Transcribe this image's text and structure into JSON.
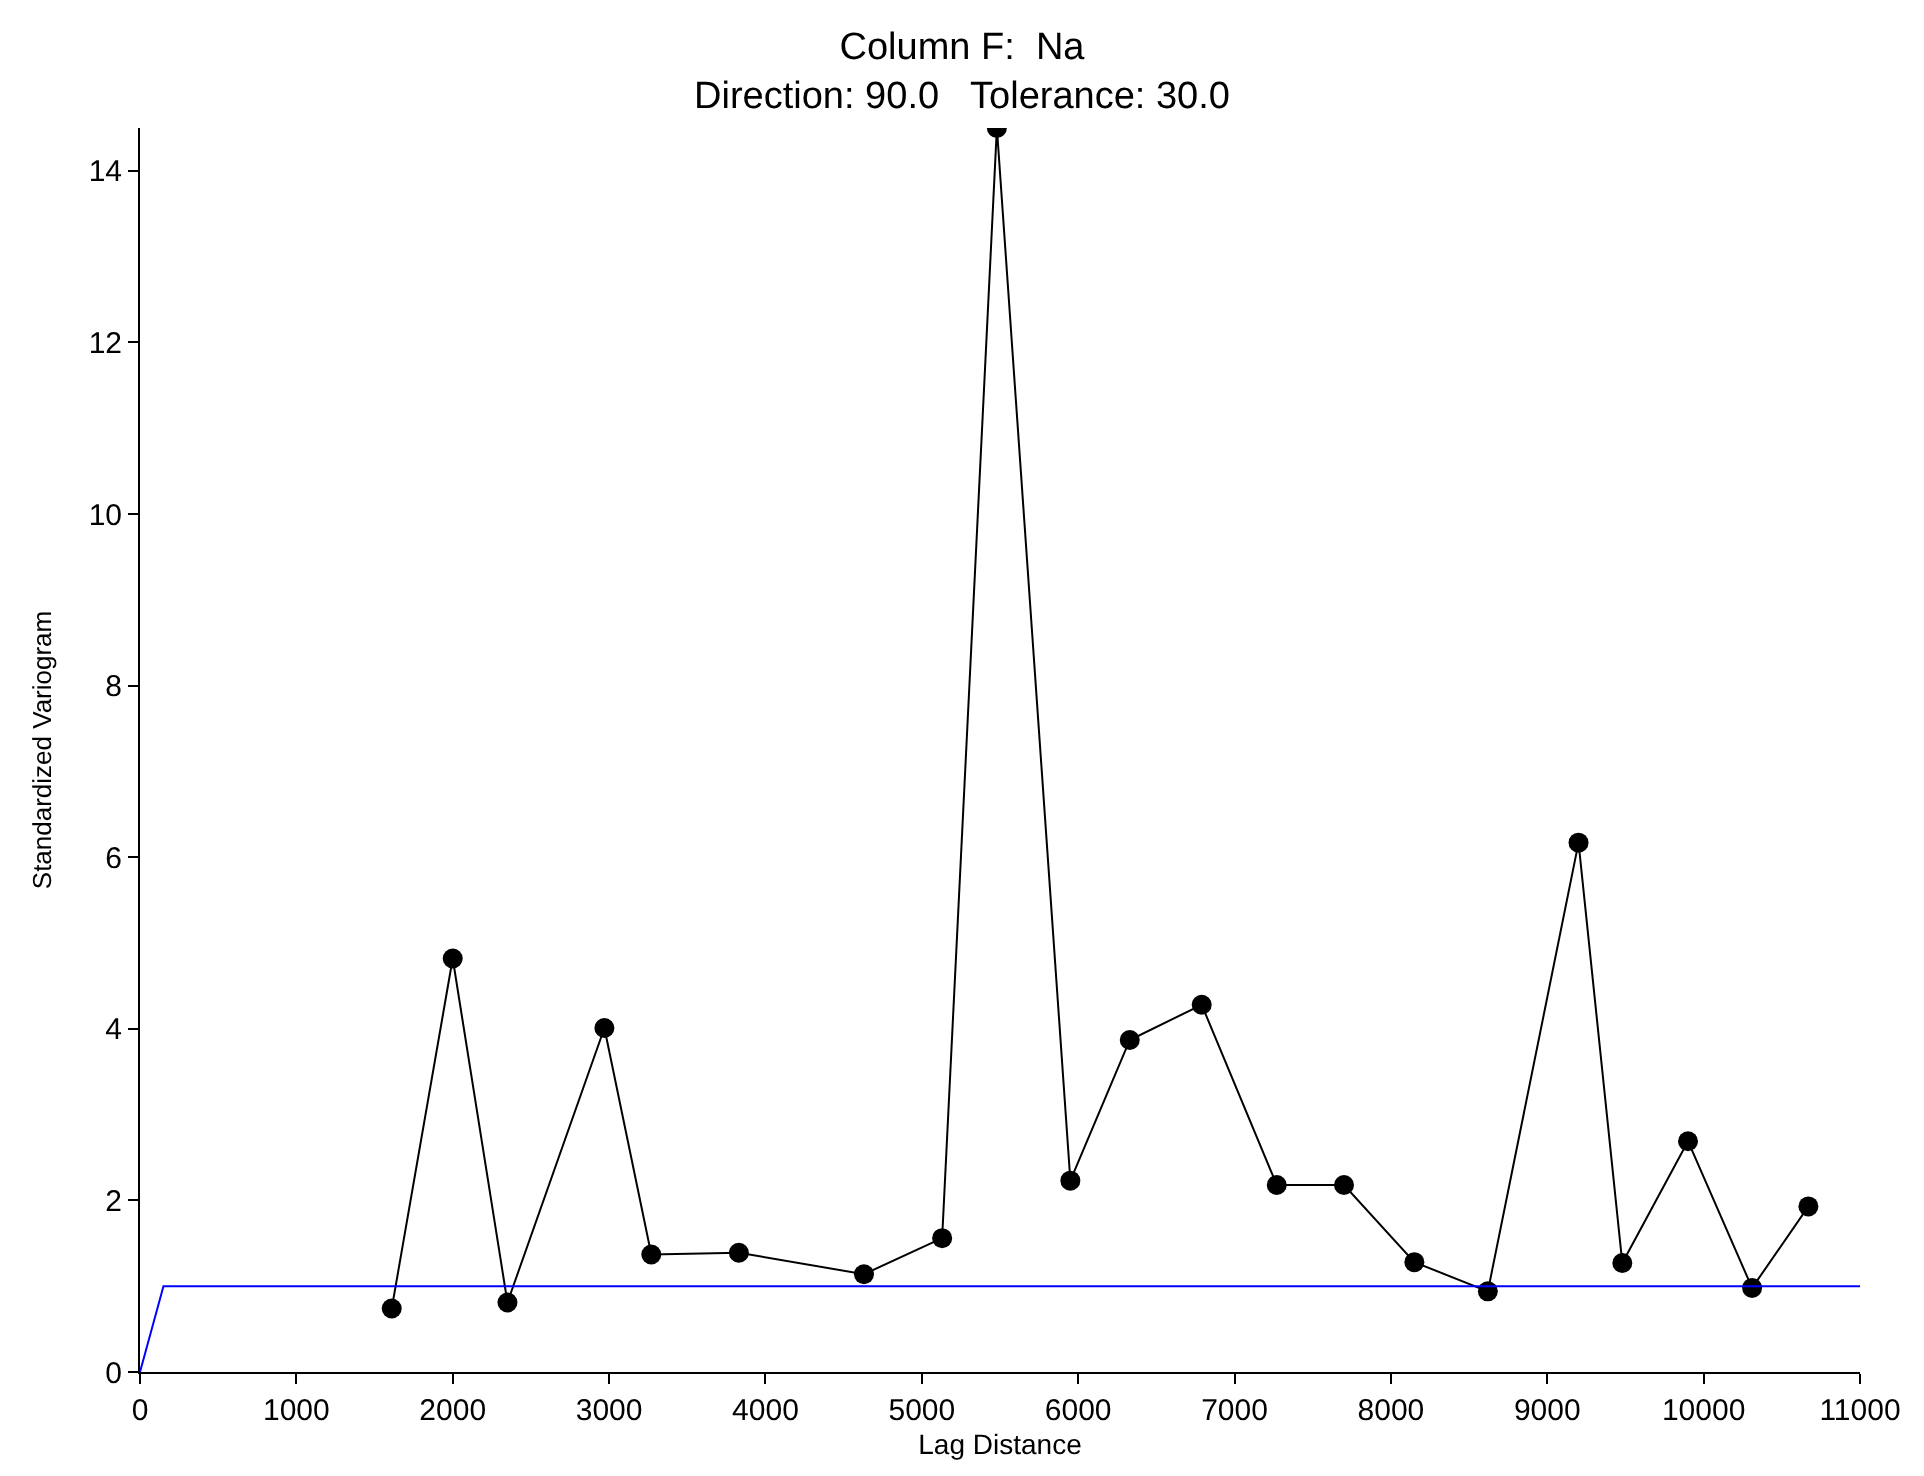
{
  "chart_data": {
    "type": "line",
    "title": "Column F:  Na",
    "subtitle": "Direction: 90.0   Tolerance: 30.0",
    "xlabel": "Lag Distance",
    "ylabel": "Standardized Variogram",
    "series": [
      {
        "color": "#000000",
        "marker": "circle",
        "x": [
          1610,
          2000,
          2350,
          2970,
          3270,
          3830,
          4630,
          5130,
          5480,
          5950,
          6330,
          6790,
          7270,
          7700,
          8150,
          8620,
          9200,
          9480,
          9900,
          10310,
          10670
        ],
        "values": [
          0.74,
          4.82,
          0.81,
          4.01,
          1.37,
          1.39,
          1.14,
          1.56,
          14.5,
          2.23,
          3.87,
          4.28,
          2.18,
          2.18,
          1.28,
          0.94,
          6.17,
          1.27,
          2.69,
          0.98,
          1.93
        ]
      },
      {
        "color": "#0000ff",
        "marker": "none",
        "x": [
          0,
          150,
          11000
        ],
        "values": [
          0,
          1,
          1
        ]
      }
    ],
    "xlim": [
      0,
      11000
    ],
    "xticks": [
      0,
      1000,
      2000,
      3000,
      4000,
      5000,
      6000,
      7000,
      8000,
      9000,
      10000,
      11000
    ],
    "ylim": [
      0,
      14.5
    ],
    "yticks": [
      0,
      2,
      4,
      6,
      8,
      10,
      12,
      14
    ]
  }
}
